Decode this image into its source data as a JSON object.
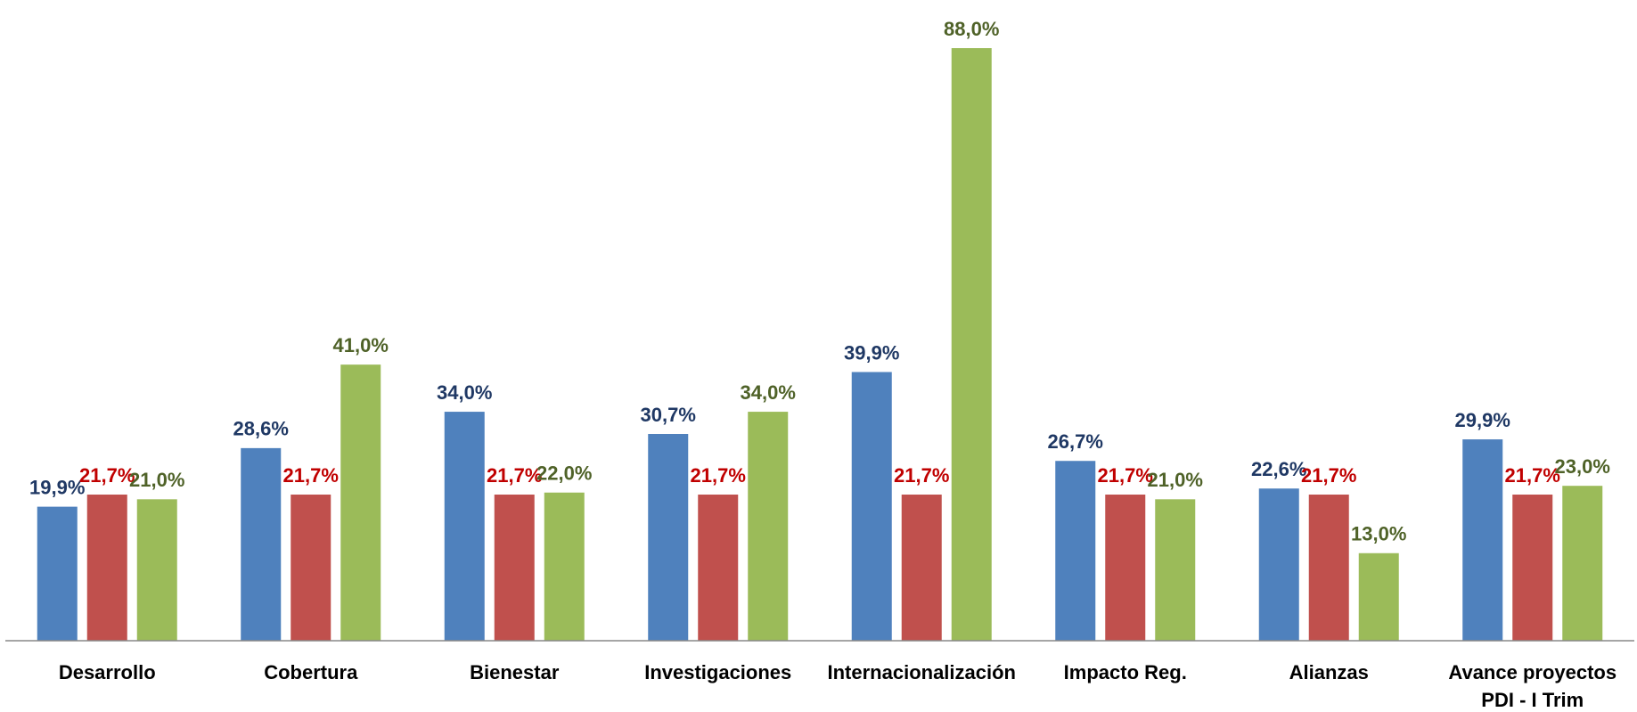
{
  "chart_data": {
    "type": "bar",
    "categories": [
      "Desarrollo",
      "Cobertura",
      "Bienestar",
      "Investigaciones",
      "Internacionalización",
      "Impacto Reg.",
      "Alianzas",
      "Avance proyectos\nPDI - I Trim"
    ],
    "series": [
      {
        "color": "#4f81bd",
        "label_color": "#1f3864",
        "values": [
          19.9,
          28.6,
          34.0,
          30.7,
          39.9,
          26.7,
          22.6,
          29.9
        ],
        "value_labels": [
          "19,9%",
          "28,6%",
          "34,0%",
          "30,7%",
          "39,9%",
          "26,7%",
          "22,6%",
          "29,9%"
        ]
      },
      {
        "color": "#c0504d",
        "label_color": "#c00000",
        "values": [
          21.7,
          21.7,
          21.7,
          21.7,
          21.7,
          21.7,
          21.7,
          21.7
        ],
        "value_labels": [
          "21,7%",
          "21,7%",
          "21,7%",
          "21,7%",
          "21,7%",
          "21,7%",
          "21,7%",
          "21,7%"
        ]
      },
      {
        "color": "#9bbb59",
        "label_color": "#4f6228",
        "values": [
          21.0,
          41.0,
          22.0,
          34.0,
          88.0,
          21.0,
          13.0,
          23.0
        ],
        "value_labels": [
          "21,0%",
          "41,0%",
          "22,0%",
          "34,0%",
          "88,0%",
          "21,0%",
          "13,0%",
          "23,0%"
        ]
      }
    ]
  }
}
